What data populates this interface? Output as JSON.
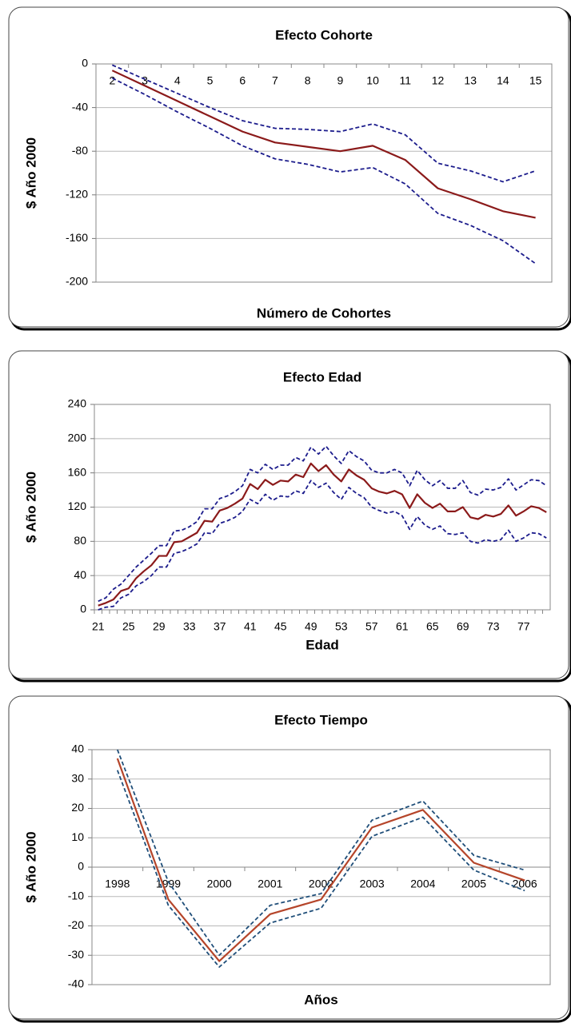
{
  "chart_data": [
    {
      "type": "line",
      "title": "Efecto Cohorte",
      "xlabel": "Número de Cohortes",
      "ylabel": "$ Año 2000",
      "categories": [
        2,
        3,
        4,
        5,
        6,
        7,
        8,
        9,
        10,
        11,
        12,
        13,
        14,
        15
      ],
      "series": [
        {
          "color": "#1c1c8c",
          "dashed": true,
          "values": [
            -1,
            -14,
            -27,
            -40,
            -52,
            -59,
            -60,
            -62,
            -55,
            -65,
            -91,
            -98,
            -108,
            -98
          ]
        },
        {
          "color": "#8b1a1a",
          "dashed": false,
          "values": [
            -6,
            -20,
            -34,
            -48,
            -62,
            -72,
            -76,
            -80,
            -75,
            -88,
            -114,
            -124,
            -135,
            -141
          ]
        },
        {
          "color": "#1c1c8c",
          "dashed": true,
          "values": [
            -13,
            -28,
            -44,
            -59,
            -75,
            -87,
            -92,
            -99,
            -95,
            -110,
            -137,
            -148,
            -162,
            -183
          ]
        }
      ],
      "ylim": [
        -200,
        0
      ],
      "yticks": [
        -200,
        -160,
        -120,
        -80,
        -40,
        0
      ],
      "grid": true
    },
    {
      "type": "line",
      "title": "Efecto Edad",
      "xlabel": "Edad",
      "ylabel": "$ Año 2000",
      "categories": [
        21,
        null,
        null,
        null,
        25,
        null,
        null,
        null,
        29,
        null,
        null,
        null,
        33,
        null,
        null,
        null,
        37,
        null,
        null,
        null,
        41,
        null,
        null,
        null,
        45,
        null,
        null,
        null,
        49,
        null,
        null,
        null,
        53,
        null,
        null,
        null,
        57,
        null,
        null,
        null,
        61,
        null,
        null,
        null,
        65,
        null,
        null,
        null,
        69,
        null,
        null,
        null,
        73,
        null,
        null,
        null,
        77,
        null,
        null,
        null
      ],
      "series": [
        {
          "color": "#1c1c8c",
          "dashed": true,
          "values": [
            10,
            14,
            24,
            30,
            40,
            50,
            58,
            66,
            75,
            75,
            92,
            93,
            97,
            103,
            118,
            118,
            130,
            133,
            138,
            145,
            164,
            160,
            170,
            164,
            169,
            169,
            178,
            174,
            190,
            182,
            191,
            180,
            171,
            186,
            179,
            174,
            163,
            160,
            160,
            164,
            160,
            145,
            163,
            152,
            145,
            151,
            142,
            142,
            151,
            137,
            134,
            141,
            140,
            143,
            153,
            140,
            146,
            152,
            151,
            145
          ]
        },
        {
          "color": "#8b1a1a",
          "dashed": false,
          "values": [
            5,
            8,
            12,
            22,
            25,
            37,
            45,
            52,
            63,
            63,
            79,
            80,
            85,
            90,
            104,
            103,
            116,
            119,
            124,
            130,
            147,
            141,
            152,
            146,
            151,
            150,
            158,
            155,
            171,
            162,
            169,
            158,
            150,
            164,
            157,
            152,
            142,
            138,
            136,
            139,
            135,
            119,
            135,
            125,
            119,
            124,
            115,
            115,
            120,
            108,
            106,
            111,
            109,
            112,
            122,
            110,
            115,
            121,
            119,
            114
          ]
        },
        {
          "color": "#1c1c8c",
          "dashed": true,
          "values": [
            0,
            3,
            4,
            14,
            18,
            28,
            33,
            40,
            50,
            50,
            66,
            68,
            72,
            77,
            90,
            89,
            101,
            104,
            108,
            115,
            129,
            124,
            135,
            128,
            133,
            132,
            139,
            136,
            151,
            143,
            148,
            137,
            129,
            143,
            136,
            131,
            120,
            116,
            113,
            115,
            110,
            94,
            109,
            99,
            94,
            98,
            89,
            88,
            90,
            80,
            78,
            82,
            80,
            82,
            93,
            80,
            84,
            90,
            89,
            84
          ]
        }
      ],
      "ylim": [
        0,
        240
      ],
      "yticks": [
        0,
        40,
        80,
        120,
        160,
        200,
        240
      ],
      "grid": true
    },
    {
      "type": "line",
      "title": "Efecto Tiempo",
      "xlabel": "Años",
      "ylabel": "$ Año 2000",
      "categories": [
        1998,
        1999,
        2000,
        2001,
        2002,
        2003,
        2004,
        2005,
        2006
      ],
      "series": [
        {
          "color": "#1f4e79",
          "dashed": true,
          "values": [
            40,
            -5,
            -30,
            -13,
            -9,
            16,
            22.5,
            4,
            -1
          ]
        },
        {
          "color": "#b5452a",
          "dashed": false,
          "values": [
            37,
            -11,
            -32,
            -16,
            -11,
            13.5,
            19.5,
            1.5,
            -4.5
          ]
        },
        {
          "color": "#1f4e79",
          "dashed": true,
          "values": [
            33,
            -13,
            -34,
            -19,
            -14,
            10.5,
            17,
            -1,
            -8
          ]
        }
      ],
      "ylim": [
        -40,
        40
      ],
      "yticks": [
        -40,
        -30,
        -20,
        -10,
        0,
        10,
        20,
        30,
        40
      ],
      "grid": true
    }
  ]
}
